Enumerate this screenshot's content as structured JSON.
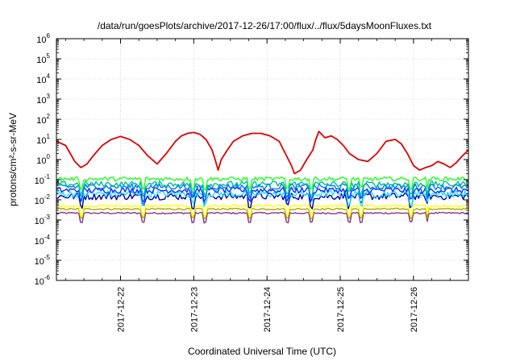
{
  "chart_data": {
    "type": "line",
    "title": "/data/run/goesPlots/archive/2017-12-26/17:00/flux/../flux/5daysMoonFluxes.txt",
    "xlabel": "Coordinated Universal Time (UTC)",
    "ylabel": "protons/cm²-s-sr-MeV",
    "yscale": "log",
    "ylim": [
      1e-06,
      1000000.0
    ],
    "y_ticks": [
      {
        "value": 1e-06,
        "base": "10",
        "exp": "-6"
      },
      {
        "value": 1e-05,
        "base": "10",
        "exp": "-5"
      },
      {
        "value": 0.0001,
        "base": "10",
        "exp": "-4"
      },
      {
        "value": 0.001,
        "base": "10",
        "exp": "-3"
      },
      {
        "value": 0.01,
        "base": "10",
        "exp": "-2"
      },
      {
        "value": 0.1,
        "base": "10",
        "exp": "-1"
      },
      {
        "value": 1,
        "base": "10",
        "exp": "0"
      },
      {
        "value": 10,
        "base": "10",
        "exp": "1"
      },
      {
        "value": 100,
        "base": "10",
        "exp": "2"
      },
      {
        "value": 1000,
        "base": "10",
        "exp": "3"
      },
      {
        "value": 10000,
        "base": "10",
        "exp": "4"
      },
      {
        "value": 100000,
        "base": "10",
        "exp": "5"
      },
      {
        "value": 1000000,
        "base": "10",
        "exp": "6"
      }
    ],
    "xlim": [
      "2017-12-21 03:00",
      "2017-12-26 18:00"
    ],
    "x_ticks": [
      "2017-12-22",
      "2017-12-23",
      "2017-12-24",
      "2017-12-25",
      "2017-12-26"
    ],
    "grid": true,
    "series": [
      {
        "color": "#dd0000",
        "x": [
          "2017-12-21 03:00",
          "2017-12-21 06:00",
          "2017-12-21 08:00",
          "2017-12-21 09:00",
          "2017-12-21 11:00",
          "2017-12-21 13:00",
          "2017-12-21 15:00",
          "2017-12-21 18:00",
          "2017-12-21 21:00",
          "2017-12-22 00:00",
          "2017-12-22 03:00",
          "2017-12-22 06:00",
          "2017-12-22 09:00",
          "2017-12-22 12:00",
          "2017-12-22 15:00",
          "2017-12-22 18:00",
          "2017-12-22 20:00",
          "2017-12-22 22:00",
          "2017-12-23 00:00",
          "2017-12-23 02:00",
          "2017-12-23 04:00",
          "2017-12-23 06:00",
          "2017-12-23 07:00",
          "2017-12-23 08:00",
          "2017-12-23 09:00",
          "2017-12-23 11:00",
          "2017-12-23 13:00",
          "2017-12-23 16:00",
          "2017-12-23 19:00",
          "2017-12-23 22:00",
          "2017-12-24 01:00",
          "2017-12-24 04:00",
          "2017-12-24 06:00",
          "2017-12-24 08:00",
          "2017-12-24 09:00",
          "2017-12-24 11:00",
          "2017-12-24 13:00",
          "2017-12-24 15:00",
          "2017-12-24 16:00",
          "2017-12-24 17:00",
          "2017-12-24 19:00",
          "2017-12-24 21:00",
          "2017-12-24 23:00",
          "2017-12-25 01:00",
          "2017-12-25 03:00",
          "2017-12-25 06:00",
          "2017-12-25 09:00",
          "2017-12-25 12:00",
          "2017-12-25 15:00",
          "2017-12-25 18:00",
          "2017-12-25 20:00",
          "2017-12-25 22:00",
          "2017-12-26 00:00",
          "2017-12-26 02:00",
          "2017-12-26 04:00",
          "2017-12-26 06:00",
          "2017-12-26 08:00",
          "2017-12-26 10:00",
          "2017-12-26 12:00",
          "2017-12-26 14:00",
          "2017-12-26 16:00",
          "2017-12-26 18:00"
        ],
        "values": [
          8,
          5,
          1.5,
          0.8,
          0.4,
          0.6,
          1.5,
          5,
          10,
          14,
          10,
          5,
          1.5,
          0.6,
          2,
          8,
          15,
          20,
          22,
          18,
          10,
          3,
          1,
          0.3,
          1,
          3,
          8,
          15,
          20,
          20,
          15,
          8,
          2,
          0.5,
          0.2,
          0.3,
          1,
          3,
          10,
          25,
          12,
          15,
          10,
          5,
          2,
          1,
          0.8,
          2,
          8,
          10,
          6,
          2,
          0.5,
          0.3,
          0.4,
          0.5,
          0.8,
          0.6,
          0.4,
          0.7,
          1.5,
          3
        ]
      },
      {
        "color": "#22ff22",
        "baseline": 0.11,
        "amp": 0.2
      },
      {
        "color": "#00bb99",
        "baseline": 0.06,
        "amp": 0.3
      },
      {
        "color": "#0077ff",
        "baseline": 0.045,
        "amp": 0.3
      },
      {
        "color": "#0033ff",
        "baseline": 0.03,
        "amp": 0.3
      },
      {
        "color": "#22ddff",
        "baseline": 0.02,
        "amp": 0.35
      },
      {
        "color": "#0000aa",
        "baseline": 0.015,
        "amp": 0.35
      },
      {
        "color": "#ffff00",
        "baseline": 0.005,
        "amp": 0.1
      },
      {
        "color": "#aaaa00",
        "baseline": 0.0035,
        "amp": 0.08
      },
      {
        "color": "#883388",
        "baseline": 0.0022,
        "amp": 0.08
      }
    ]
  }
}
